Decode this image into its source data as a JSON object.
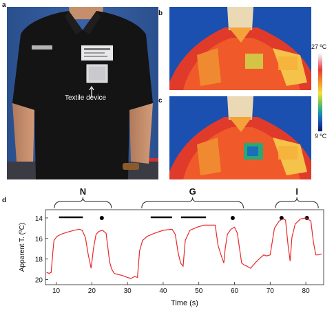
{
  "panels": {
    "a": {
      "letter": "a",
      "device_label": "Textile device"
    },
    "b": {
      "letter": "b"
    },
    "c": {
      "letter": "c"
    },
    "d": {
      "letter": "d"
    }
  },
  "colorbar": {
    "max_label": "27 ºC",
    "min_label": "9 ºC"
  },
  "chart_data": {
    "type": "line",
    "xlabel": "Time (s)",
    "ylabel": "Apparent T. (ºC)",
    "xlim": [
      7,
      85
    ],
    "ylim": [
      20.5,
      13.2
    ],
    "y_inverted": true,
    "xticks": [
      10,
      20,
      30,
      40,
      50,
      60,
      70,
      80
    ],
    "yticks": [
      14,
      16,
      18,
      20
    ],
    "group_labels": [
      "N",
      "G",
      "I"
    ],
    "series": [
      {
        "color": "#e8282a",
        "x": [
          7.3,
          8.0,
          8.6,
          9.1,
          9.4,
          10.2,
          11.3,
          13.0,
          15.0,
          16.5,
          17.3,
          18.2,
          19.0,
          19.8,
          20.5,
          21.2,
          22.0,
          23.0,
          24.0,
          25.0,
          25.6,
          26.3,
          27.2,
          28.5,
          30.0,
          31.0,
          32.0,
          32.8,
          33.4,
          34.2,
          35.5,
          37.5,
          40.0,
          42.5,
          43.4,
          44.2,
          44.9,
          45.6,
          46.2,
          47.5,
          49.5,
          51.5,
          53.5,
          54.6,
          55.4,
          56.4,
          57.0,
          57.4,
          58.0,
          59.0,
          60.0,
          60.8,
          61.5,
          62.0,
          62.8,
          63.5,
          64.5,
          66.0,
          67.5,
          68.2,
          69.0,
          70.0,
          71.2,
          72.5,
          73.6,
          74.3,
          75.0,
          75.6,
          76.1,
          77.0,
          78.5,
          80.0,
          81.4,
          82.1,
          82.8,
          83.5,
          84.5
        ],
        "y": [
          19.3,
          19.4,
          19.3,
          17.2,
          16.2,
          15.8,
          15.6,
          15.4,
          15.2,
          15.1,
          15.2,
          15.9,
          17.6,
          18.9,
          16.9,
          15.6,
          15.3,
          15.2,
          15.5,
          18.3,
          19.0,
          19.4,
          19.5,
          19.6,
          19.8,
          19.9,
          19.7,
          19.8,
          17.2,
          16.2,
          15.8,
          15.5,
          15.2,
          15.1,
          15.6,
          17.4,
          18.4,
          18.7,
          16.2,
          15.2,
          14.9,
          14.7,
          14.7,
          14.7,
          16.7,
          17.8,
          18.4,
          17.0,
          15.6,
          15.1,
          14.9,
          15.5,
          17.2,
          18.4,
          18.6,
          18.7,
          18.9,
          18.3,
          17.8,
          17.6,
          17.7,
          17.6,
          15.0,
          14.3,
          14.1,
          14.2,
          16.6,
          18.2,
          15.9,
          14.6,
          14.1,
          14.0,
          14.3,
          16.3,
          17.6,
          17.6,
          17.5
        ]
      }
    ]
  }
}
